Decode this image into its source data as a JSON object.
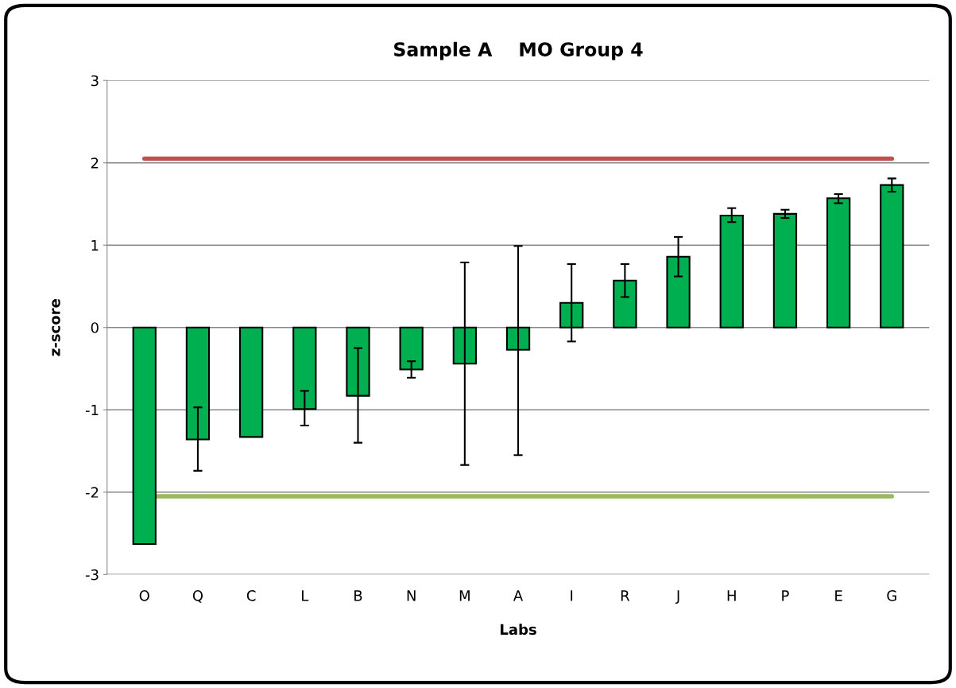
{
  "chart_data": {
    "type": "bar",
    "title": "Sample A    MO Group 4",
    "xlabel": "Labs",
    "ylabel": "z-score",
    "categories": [
      "O",
      "Q",
      "C",
      "L",
      "B",
      "N",
      "M",
      "A",
      "I",
      "R",
      "J",
      "H",
      "P",
      "E",
      "G"
    ],
    "values": [
      -2.63,
      -1.36,
      -1.33,
      -0.99,
      -0.83,
      -0.51,
      -0.44,
      -0.27,
      0.3,
      0.57,
      0.86,
      1.36,
      1.38,
      1.57,
      1.73
    ],
    "errors": [
      null,
      [
        -1.74,
        -0.97
      ],
      null,
      [
        -1.19,
        -0.77
      ],
      [
        -1.4,
        -0.25
      ],
      [
        -0.61,
        -0.41
      ],
      [
        -1.67,
        0.79
      ],
      [
        -1.55,
        0.99
      ],
      [
        -0.17,
        0.77
      ],
      [
        0.37,
        0.77
      ],
      [
        0.62,
        1.1
      ],
      [
        1.28,
        1.45
      ],
      [
        1.33,
        1.43
      ],
      [
        1.51,
        1.62
      ],
      [
        1.65,
        1.81
      ]
    ],
    "color": "#00b050",
    "ylim": [
      -3,
      3
    ],
    "yticks": [
      -3,
      -2,
      -1,
      0,
      1,
      2,
      3
    ],
    "grid": "y",
    "ref_lines": [
      {
        "axis": "y",
        "value": 2.05,
        "label": null,
        "color": "#c0504d"
      },
      {
        "axis": "y",
        "value": -2.05,
        "label": null,
        "color": "#9bbb59"
      }
    ]
  }
}
